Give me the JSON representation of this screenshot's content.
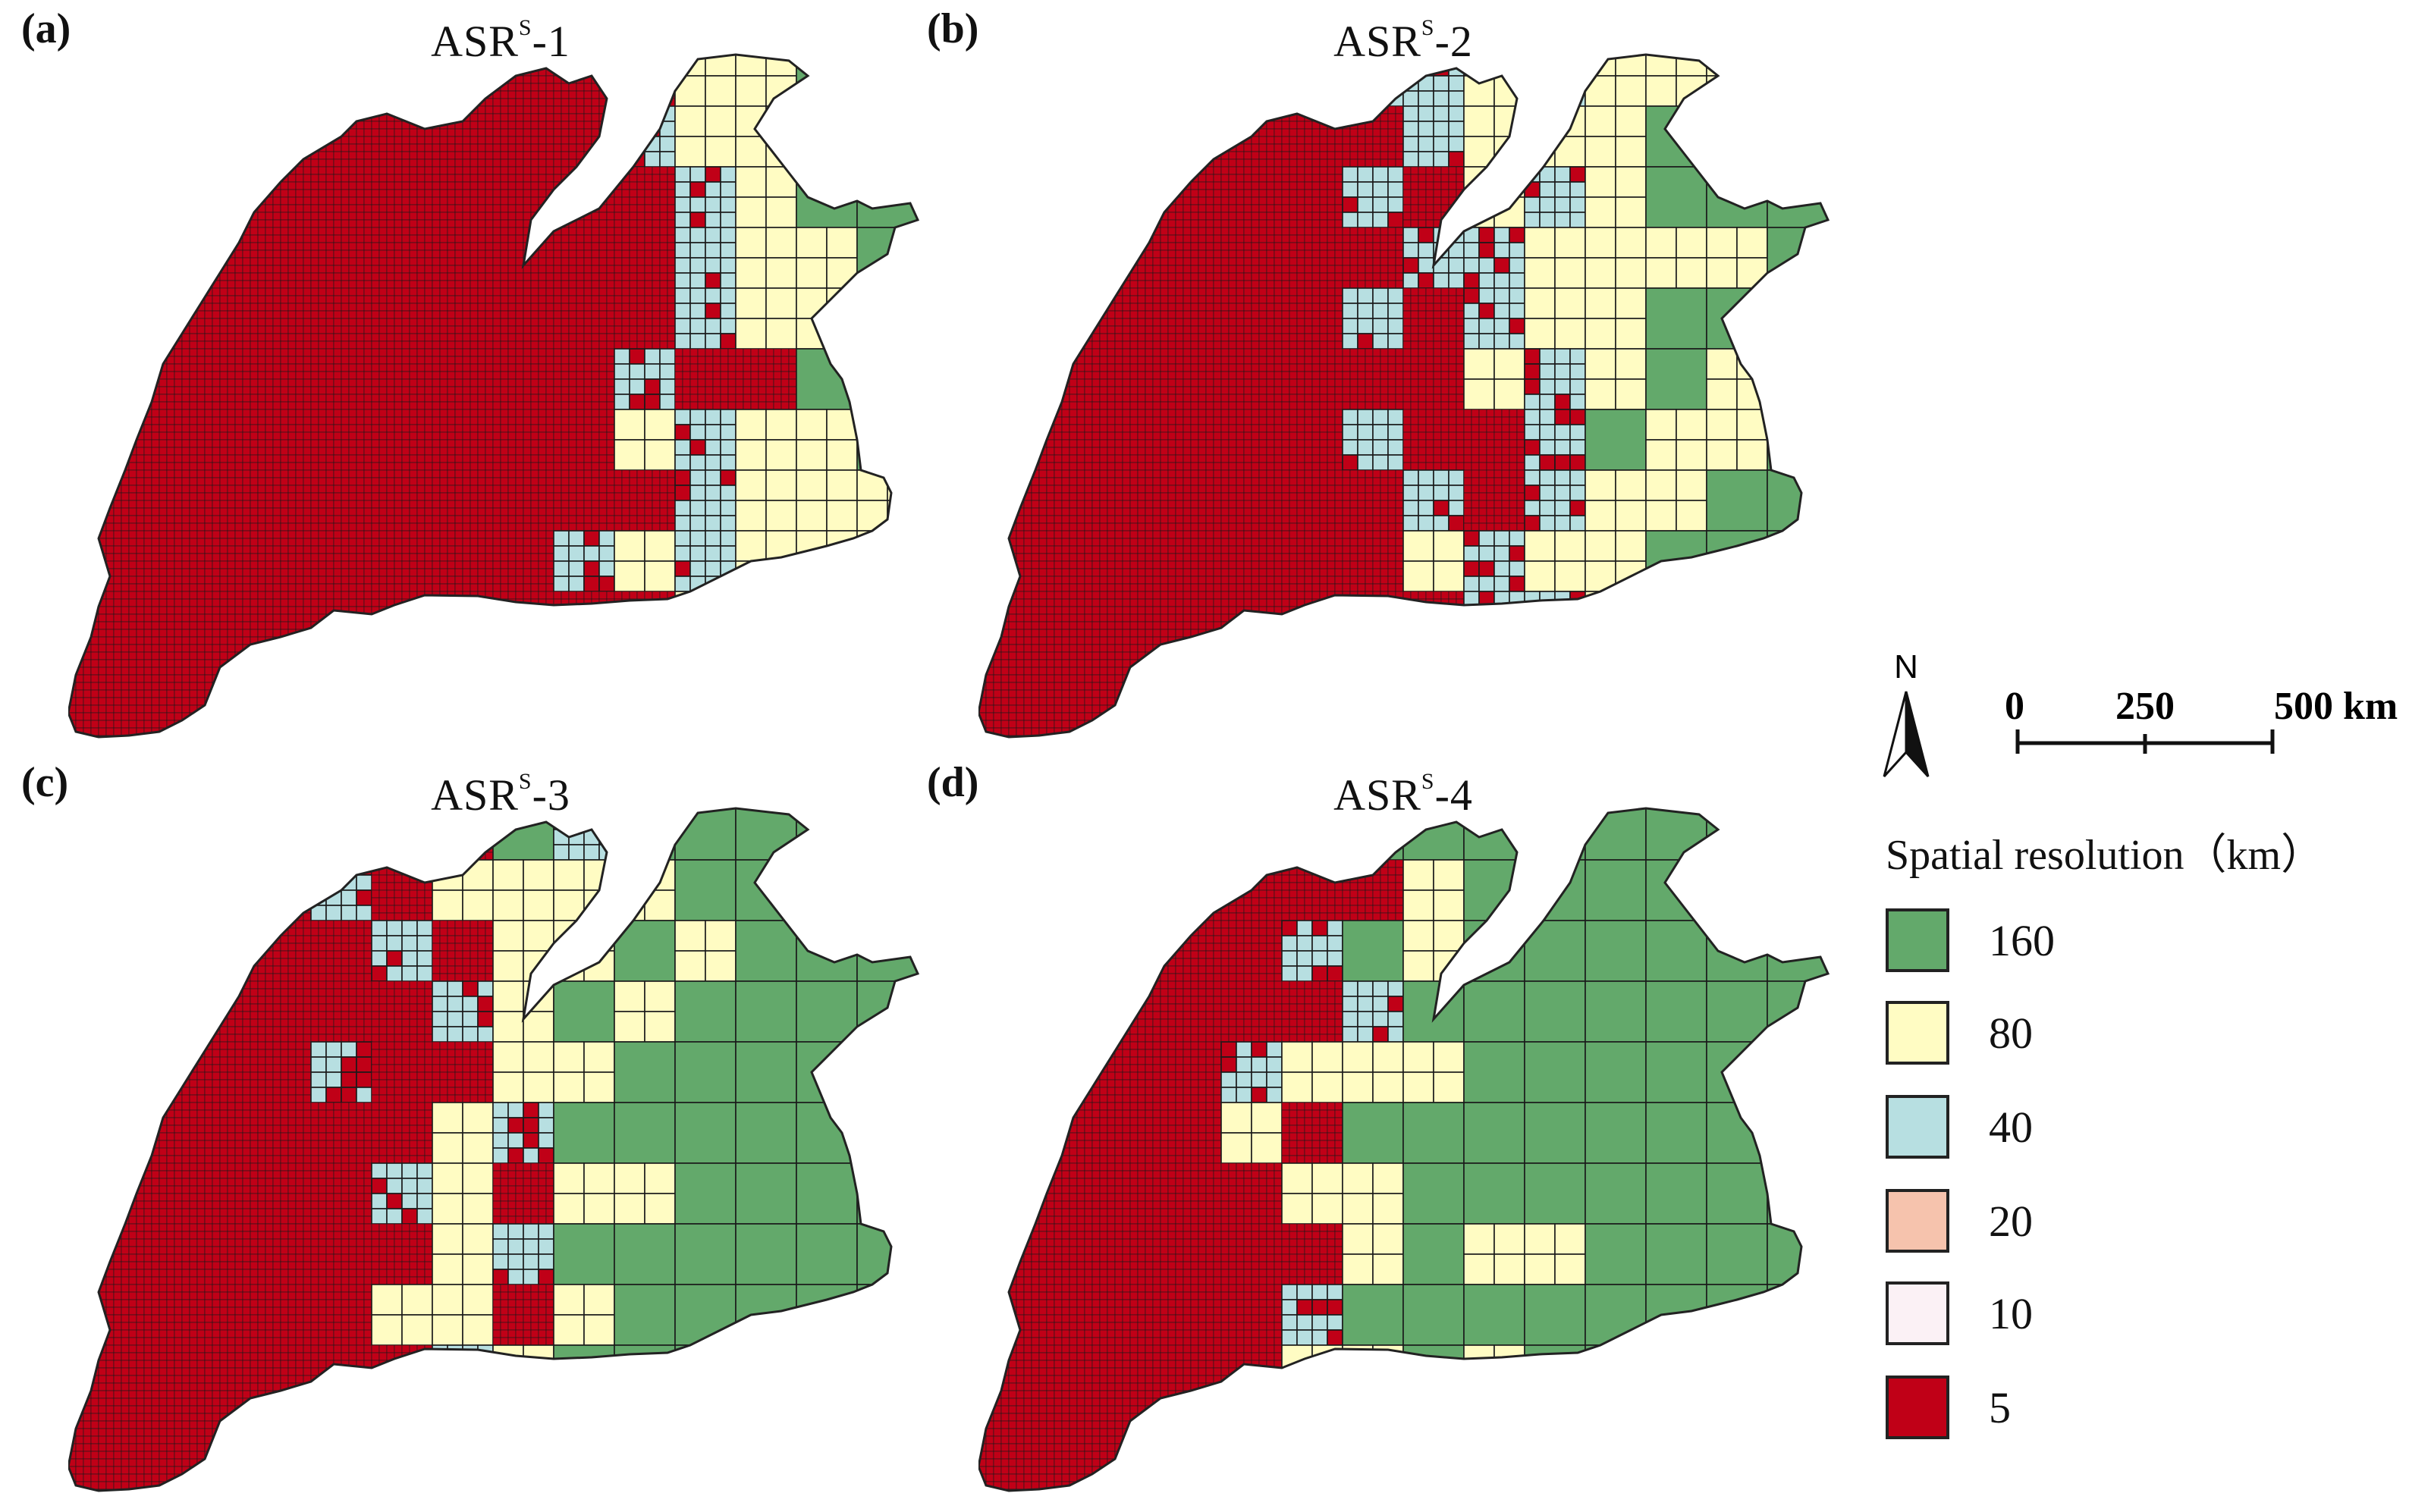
{
  "panels": [
    {
      "label": "(a)",
      "title_main": "ASR",
      "title_sup": "S",
      "title_rest": "-1",
      "fractions": {
        "160": 0.04,
        "80": 0.22,
        "40": 0.08,
        "5": 0.66
      }
    },
    {
      "label": "(b)",
      "title_main": "ASR",
      "title_sup": "S",
      "title_rest": "-2",
      "fractions": {
        "160": 0.18,
        "80": 0.22,
        "40": 0.1,
        "5": 0.5
      }
    },
    {
      "label": "(c)",
      "title_main": "ASR",
      "title_sup": "S",
      "title_rest": "-3",
      "fractions": {
        "160": 0.38,
        "80": 0.14,
        "40": 0.08,
        "5": 0.4
      }
    },
    {
      "label": "(d)",
      "title_main": "ASR",
      "title_sup": "S",
      "title_rest": "-4",
      "fractions": {
        "160": 0.48,
        "80": 0.12,
        "40": 0.06,
        "5": 0.34
      }
    }
  ],
  "north_arrow": {
    "label": "N"
  },
  "scale_bar": {
    "labels": [
      "0",
      "250",
      "500 km"
    ]
  },
  "legend": {
    "title": "Spatial resolution（km）",
    "items": [
      {
        "label": "160",
        "color": "#63a96b"
      },
      {
        "label": "80",
        "color": "#fffcc3"
      },
      {
        "label": "40",
        "color": "#b7dfe1"
      },
      {
        "label": "20",
        "color": "#f6c3ad"
      },
      {
        "label": "10",
        "color": "#fbf1f5"
      },
      {
        "label": "5",
        "color": "#c00017"
      }
    ]
  },
  "colors": {
    "grid_line": "#1a1a1a",
    "outline": "#222222"
  }
}
